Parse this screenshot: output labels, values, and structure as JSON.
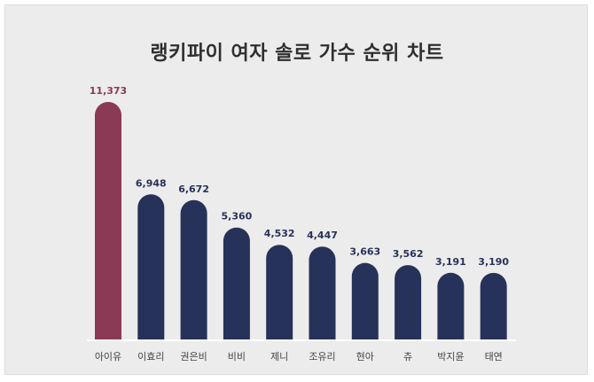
{
  "chart_data": {
    "type": "bar",
    "title": "랭키파이 여자 솔로 가수 순위 차트",
    "xlabel": "",
    "ylabel": "",
    "ylim": [
      0,
      12000
    ],
    "categories": [
      "아이유",
      "이효리",
      "권은비",
      "비비",
      "제니",
      "조유리",
      "현아",
      "츄",
      "박지윤",
      "태연"
    ],
    "values": [
      11373,
      6948,
      6672,
      5360,
      4532,
      4447,
      3663,
      3562,
      3191,
      3190
    ],
    "value_labels": [
      "11,373",
      "6,948",
      "6,672",
      "5,360",
      "4,532",
      "4,447",
      "3,663",
      "3,562",
      "3,191",
      "3,190"
    ],
    "highlight_index": 0,
    "colors": {
      "highlight": "#8a3a55",
      "bar": "#27325a",
      "axis": "#ffffff"
    }
  }
}
